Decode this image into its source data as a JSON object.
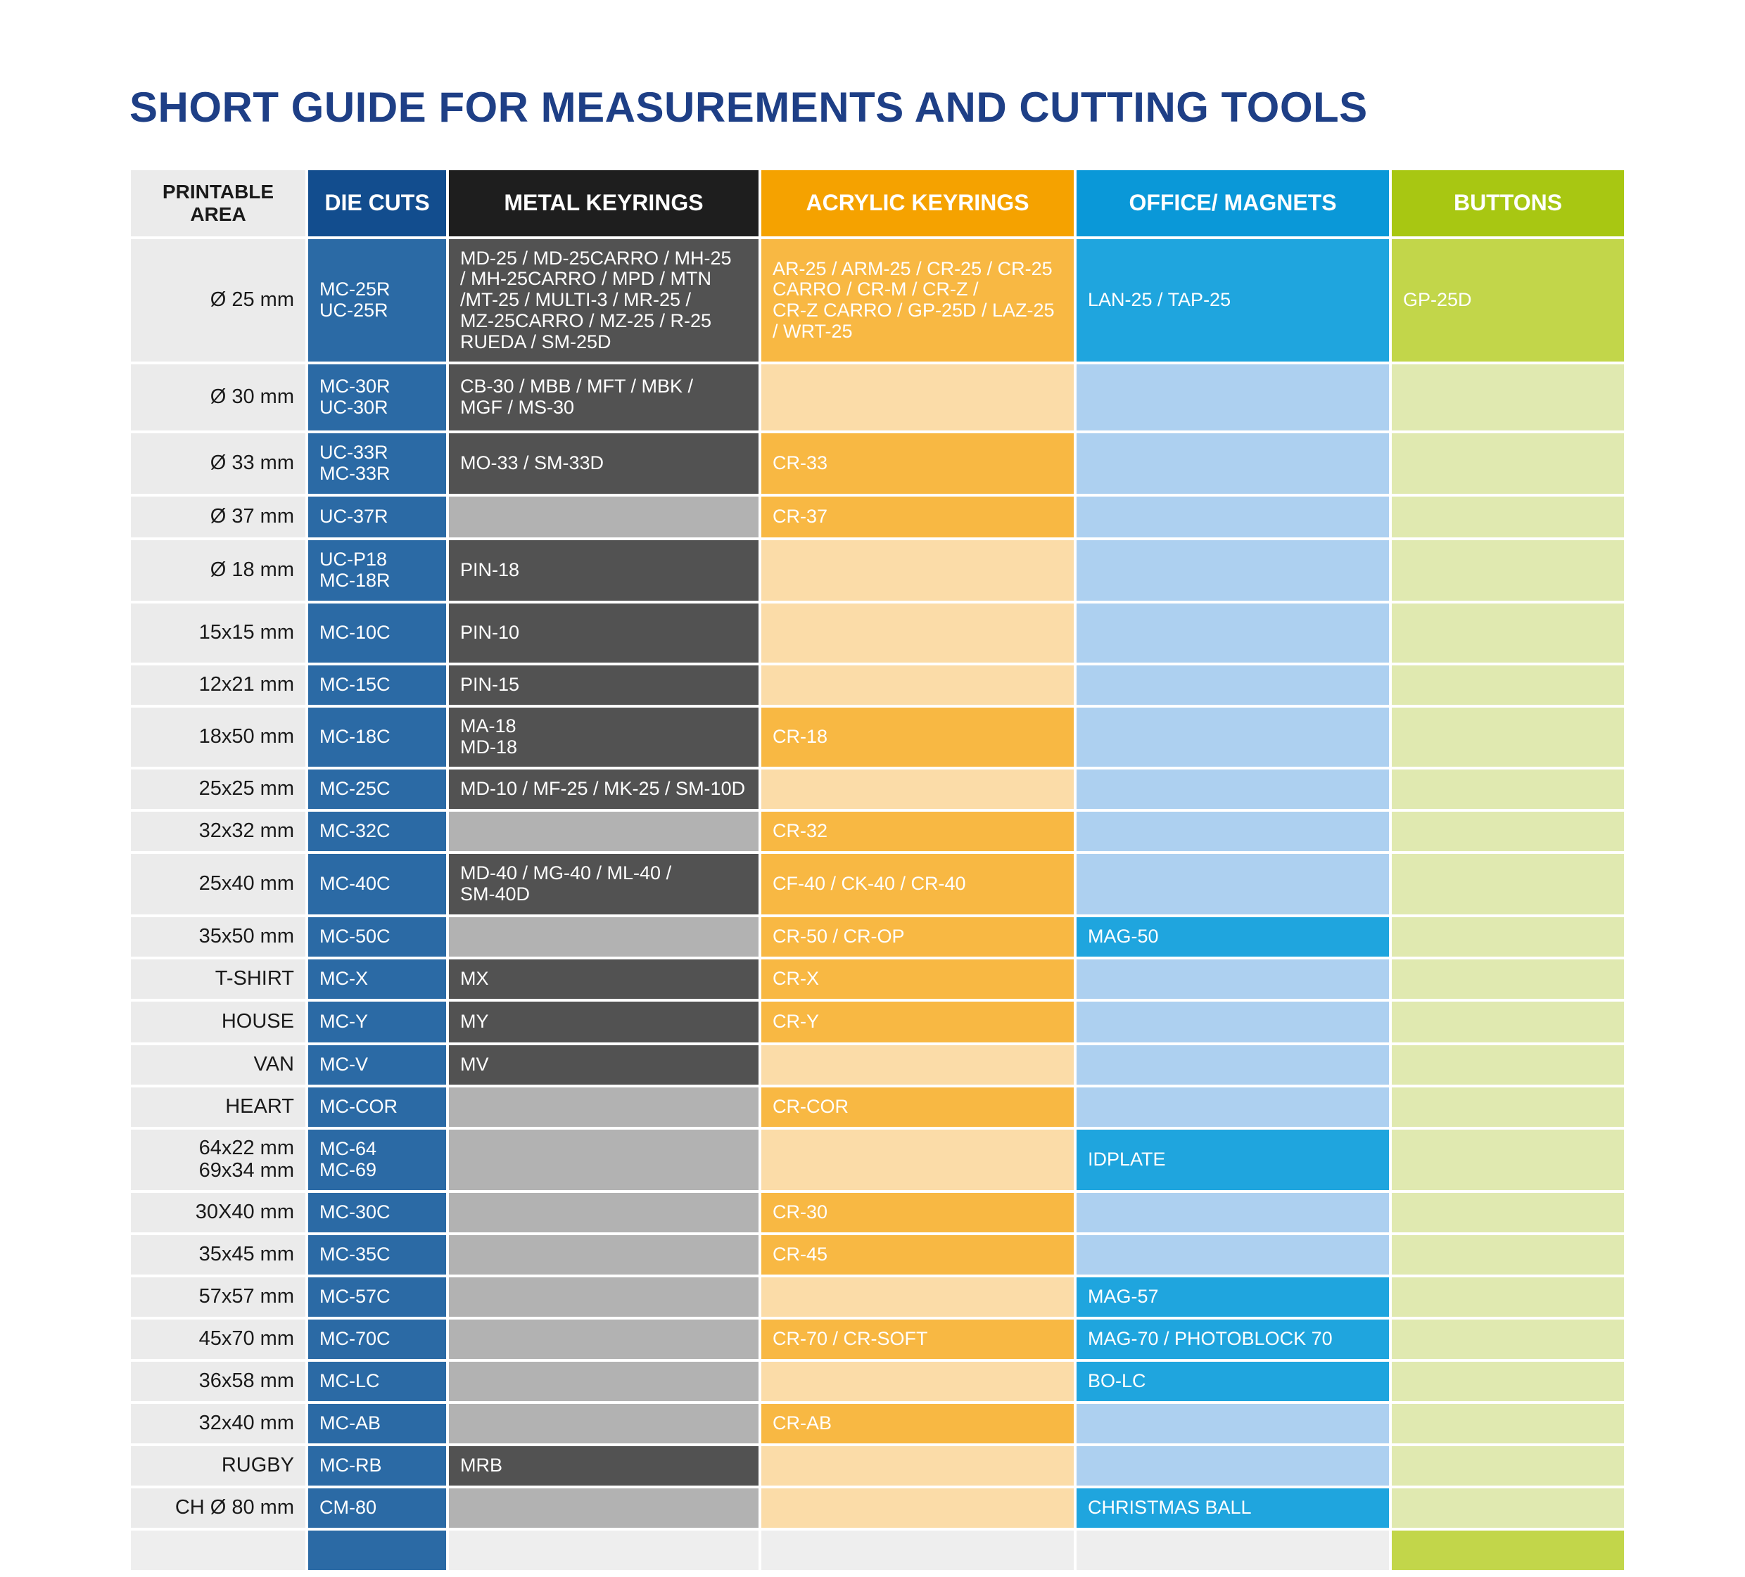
{
  "title": "SHORT GUIDE FOR MEASUREMENTS AND CUTTING TOOLS",
  "headers": {
    "area_line1": "PRINTABLE",
    "area_line2": "AREA",
    "die": "DIE CUTS",
    "metal": "METAL KEYRINGS",
    "acrylic": "ACRYLIC KEYRINGS",
    "office": "OFFICE/ MAGNETS",
    "buttons": "BUTTONS"
  },
  "colors": {
    "title": "#1e3f86",
    "die_header": "#124d8e",
    "metal_header": "#1e1e1e",
    "acrylic_header": "#f5a200",
    "office_header": "#0a98d8",
    "buttons_header": "#a8c712"
  },
  "rows": [
    {
      "area": "Ø 25 mm",
      "die": [
        "MC-25R",
        "UC-25R"
      ],
      "metal": [
        "MD-25 / MD-25CARRO / MH-25",
        "/ MH-25CARRO / MPD / MTN",
        "/MT-25 / MULTI-3 / MR-25 /",
        "MZ-25CARRO / MZ-25 / R-25",
        "RUEDA / SM-25D"
      ],
      "acrylic": [
        "AR-25 / ARM-25 / CR-25 / CR-25",
        "CARRO / CR-M  / CR-Z /",
        "CR-Z CARRO / GP-25D / LAZ-25",
        "/ WRT-25"
      ],
      "office": [
        "LAN-25 / TAP-25"
      ],
      "buttons": [
        "GP-25D"
      ]
    },
    {
      "area": "Ø 30 mm",
      "die": [
        "MC-30R",
        "UC-30R"
      ],
      "metal": [
        "CB-30 / MBB / MFT / MBK /",
        "MGF / MS-30"
      ],
      "acrylic": [],
      "office": [],
      "buttons": []
    },
    {
      "area": "Ø 33 mm",
      "die": [
        "UC-33R",
        "MC-33R"
      ],
      "metal": [
        "MO-33 / SM-33D"
      ],
      "acrylic": [
        "CR-33"
      ],
      "office": [],
      "buttons": []
    },
    {
      "area": "Ø 37 mm",
      "die": [
        "UC-37R"
      ],
      "metal": [],
      "acrylic": [
        "CR-37"
      ],
      "office": [],
      "buttons": []
    },
    {
      "area": "Ø 18 mm",
      "die": [
        "UC-P18",
        "MC-18R"
      ],
      "metal": [
        "PIN-18"
      ],
      "acrylic": [],
      "office": [],
      "buttons": []
    },
    {
      "area": "15x15 mm",
      "die": [
        "MC-10C"
      ],
      "metal": [
        "PIN-10"
      ],
      "acrylic": [],
      "office": [],
      "buttons": []
    },
    {
      "area": "12x21 mm",
      "die": [
        "MC-15C"
      ],
      "metal": [
        "PIN-15"
      ],
      "acrylic": [],
      "office": [],
      "buttons": []
    },
    {
      "area": "18x50 mm",
      "die": [
        "MC-18C"
      ],
      "metal": [
        "MA-18",
        "MD-18"
      ],
      "acrylic": [
        "CR-18"
      ],
      "office": [],
      "buttons": []
    },
    {
      "area": "25x25 mm",
      "die": [
        "MC-25C"
      ],
      "metal": [
        "MD-10 / MF-25 / MK-25 / SM-10D"
      ],
      "acrylic": [],
      "office": [],
      "buttons": []
    },
    {
      "area": "32x32 mm",
      "die": [
        "MC-32C"
      ],
      "metal": [],
      "acrylic": [
        "CR-32"
      ],
      "office": [],
      "buttons": []
    },
    {
      "area": "25x40 mm",
      "die": [
        "MC-40C"
      ],
      "metal": [
        "MD-40 / MG-40 / ML-40 /",
        "SM-40D"
      ],
      "acrylic": [
        "CF-40 / CK-40 / CR-40"
      ],
      "office": [],
      "buttons": []
    },
    {
      "area": "35x50 mm",
      "die": [
        "MC-50C"
      ],
      "metal": [],
      "acrylic": [
        "CR-50 / CR-OP"
      ],
      "office": [
        "MAG-50"
      ],
      "buttons": []
    },
    {
      "area": "T-SHIRT",
      "die": [
        "MC-X"
      ],
      "metal": [
        "MX"
      ],
      "acrylic": [
        "CR-X"
      ],
      "office": [],
      "buttons": []
    },
    {
      "area": "HOUSE",
      "die": [
        "MC-Y"
      ],
      "metal": [
        "MY"
      ],
      "acrylic": [
        "CR-Y"
      ],
      "office": [],
      "buttons": []
    },
    {
      "area": "VAN",
      "die": [
        "MC-V"
      ],
      "metal": [
        "MV"
      ],
      "acrylic": [],
      "office": [],
      "buttons": []
    },
    {
      "area": "HEART",
      "die": [
        "MC-COR"
      ],
      "metal": [],
      "acrylic": [
        "CR-COR"
      ],
      "office": [],
      "buttons": []
    },
    {
      "area": [
        "64x22 mm",
        "69x34 mm"
      ],
      "die": [
        "MC-64",
        "MC-69"
      ],
      "metal": [],
      "acrylic": [],
      "office": [
        "IDPLATE"
      ],
      "buttons": []
    },
    {
      "area": "30X40 mm",
      "die": [
        "MC-30C"
      ],
      "metal": [],
      "acrylic": [
        "CR-30"
      ],
      "office": [],
      "buttons": []
    },
    {
      "area": "35x45 mm",
      "die": [
        "MC-35C"
      ],
      "metal": [],
      "acrylic": [
        "CR-45"
      ],
      "office": [],
      "buttons": []
    },
    {
      "area": "57x57 mm",
      "die": [
        "MC-57C"
      ],
      "metal": [],
      "acrylic": [],
      "office": [
        "MAG-57"
      ],
      "buttons": []
    },
    {
      "area": "45x70 mm",
      "die": [
        "MC-70C"
      ],
      "metal": [],
      "acrylic": [
        "CR-70 / CR-SOFT"
      ],
      "office": [
        "MAG-70 / PHOTOBLOCK 70"
      ],
      "buttons": []
    },
    {
      "area": "36x58 mm",
      "die": [
        "MC-LC"
      ],
      "metal": [],
      "acrylic": [],
      "office": [
        "BO-LC"
      ],
      "buttons": []
    },
    {
      "area": "32x40 mm",
      "die": [
        "MC-AB"
      ],
      "metal": [],
      "acrylic": [
        "CR-AB"
      ],
      "office": [],
      "buttons": []
    },
    {
      "area": "RUGBY",
      "die": [
        "MC-RB"
      ],
      "metal": [
        "MRB"
      ],
      "acrylic": [],
      "office": [],
      "buttons": []
    },
    {
      "area": "CH Ø 80 mm",
      "die": [
        "CM-80"
      ],
      "metal": [],
      "acrylic": [],
      "office": [
        "CHRISTMAS BALL"
      ],
      "buttons": []
    }
  ]
}
